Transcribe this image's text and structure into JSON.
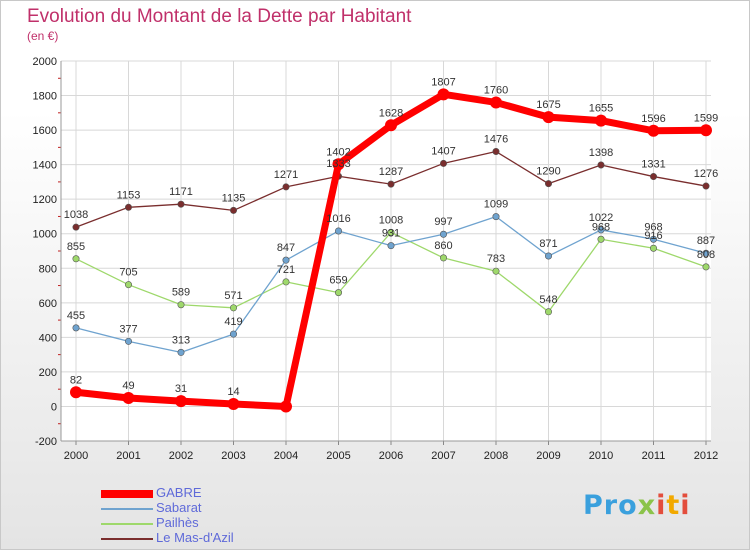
{
  "title": "Evolution du Montant de la Dette par Habitant",
  "subtitle": "(en €)",
  "logo": "Proxiti",
  "chart_data": {
    "type": "line",
    "title": "Evolution du Montant de la Dette par Habitant",
    "subtitle": "(en €)",
    "x": [
      "2000",
      "2001",
      "2002",
      "2003",
      "2004",
      "2005",
      "2006",
      "2007",
      "2008",
      "2009",
      "2010",
      "2011",
      "2012"
    ],
    "ylim": [
      -200,
      2000
    ],
    "yticks": [
      -200,
      0,
      200,
      400,
      600,
      800,
      1000,
      1200,
      1400,
      1600,
      1800,
      2000
    ],
    "grid": true,
    "legend_position": "bottom-left",
    "series": [
      {
        "name": "GABRE",
        "color": "#ff0000",
        "values": [
          82,
          49,
          31,
          14,
          0,
          1402,
          1628,
          1807,
          1760,
          1675,
          1655,
          1596,
          1599
        ],
        "labels": [
          "82",
          "49",
          "31",
          "14",
          "",
          "1402",
          "1628",
          "1807",
          "1760",
          "1675",
          "1655",
          "1596",
          "1599"
        ]
      },
      {
        "name": "Sabarat",
        "color": "#6fa3cf",
        "values": [
          455,
          377,
          313,
          419,
          847,
          1016,
          931,
          997,
          1099,
          871,
          1022,
          968,
          887
        ],
        "labels": [
          "455",
          "377",
          "313",
          "419",
          "847",
          "1016",
          "931",
          "997",
          "1099",
          "871",
          "1022",
          "968",
          "887"
        ]
      },
      {
        "name": "Pailhès",
        "color": "#9ed86b",
        "values": [
          855,
          705,
          589,
          571,
          721,
          659,
          1008,
          860,
          783,
          548,
          968,
          916,
          808
        ],
        "labels": [
          "855",
          "705",
          "589",
          "571",
          "721",
          "659",
          "1008",
          "860",
          "783",
          "548",
          "968",
          "916",
          "808"
        ]
      },
      {
        "name": "Le Mas-d'Azil",
        "color": "#7a2e2e",
        "values": [
          1038,
          1153,
          1171,
          1135,
          1271,
          1333,
          1287,
          1407,
          1476,
          1290,
          1398,
          1331,
          1276
        ],
        "labels": [
          "1038",
          "1153",
          "1171",
          "1135",
          "1271",
          "1333",
          "1287",
          "1407",
          "1476",
          "1290",
          "1398",
          "1331",
          "1276"
        ]
      }
    ]
  }
}
